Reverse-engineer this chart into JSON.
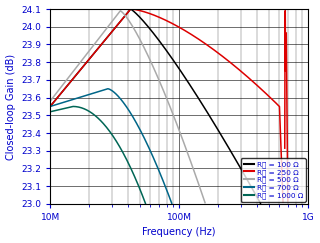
{
  "title": "",
  "xlabel": "Frequency (Hz)",
  "ylabel": "Closed-loop Gain (dB)",
  "xmin": 10000000.0,
  "xmax": 1000000000.0,
  "ymin": 23.0,
  "ymax": 24.1,
  "yticks": [
    23.0,
    23.1,
    23.2,
    23.3,
    23.4,
    23.5,
    23.6,
    23.7,
    23.8,
    23.9,
    24.0,
    24.1
  ],
  "legend": [
    {
      "label": "R₟ = 100 Ω",
      "color": "#000000"
    },
    {
      "label": "R₟ = 250 Ω",
      "color": "#dd0000"
    },
    {
      "label": "R₟ = 500 Ω",
      "color": "#aaaaaa"
    },
    {
      "label": "R₟ = 700 Ω",
      "color": "#006688"
    },
    {
      "label": "R₟ = 1000 Ω",
      "color": "#006655"
    }
  ],
  "background_color": "#ffffff",
  "label_color": "#0000cc",
  "tick_color": "#0000cc"
}
